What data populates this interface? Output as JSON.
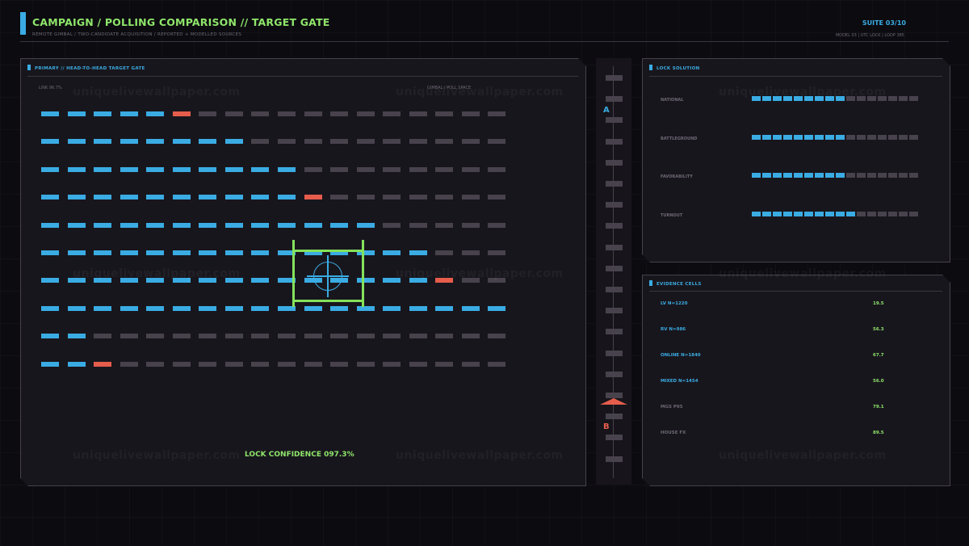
{
  "header": {
    "title": "CAMPAIGN / POLLING COMPARISON  //  TARGET GATE",
    "subtitle": "REMOTE GIMBAL / TWO-CANDIDATE ACQUISITION / REPORTED + MODELLED SOURCES",
    "suite": "SUITE 03/10",
    "meta": "MODEL 03  |  UTC LOCK  |  LOOP 385"
  },
  "primary": {
    "title": "PRIMARY // HEAD-TO-HEAD TARGET GATE",
    "link_label": "LINK 96.7%",
    "space_label": "GIMBAL / POLL SPACE",
    "confidence": "LOCK CONFIDENCE 097.3%",
    "grid_rows": [
      "bbbbbrgggggggggggg",
      "bbbbbbbbgggggggggg",
      "bbbbbbbbbbgggggggg",
      "bbbbbbbbbbrggggggg",
      "bbbbbbbbbbbbbggggg",
      "bbbbbbbbbbbbbbbggg",
      "bbbbbbbbbbbbbbbrgg",
      "bbbbbbbbbbbbbbbbbb",
      "bbgggggggggggggggg",
      "bbrggggggggggggggg"
    ]
  },
  "track": {
    "marker_a": "A",
    "marker_b": "B"
  },
  "lock_solution": {
    "title": "LOCK SOLUTION",
    "rows": [
      {
        "label": "NATIONAL",
        "filled": 9,
        "total": 16
      },
      {
        "label": "BATTLEGROUND",
        "filled": 9,
        "total": 16
      },
      {
        "label": "FAVORABILITY",
        "filled": 9,
        "total": 16
      },
      {
        "label": "TURNOUT",
        "filled": 10,
        "total": 16
      }
    ]
  },
  "evidence": {
    "title": "EVIDENCE CELLS",
    "rows": [
      {
        "label": "LV N=1220",
        "value": "19.5",
        "active": true
      },
      {
        "label": "RV N=986",
        "value": "56.3",
        "active": true
      },
      {
        "label": "ONLINE N=1840",
        "value": "67.7",
        "active": true
      },
      {
        "label": "MIXED N=1454",
        "value": "56.0",
        "active": true
      },
      {
        "label": "MGS P95",
        "value": "79.1",
        "active": false
      },
      {
        "label": "HOUSE FX",
        "value": "89.5",
        "active": false
      }
    ]
  },
  "watermark": "uniquelivewallpaper.com",
  "colors": {
    "accent_blue": "#3aace3",
    "accent_green": "#8fe66a",
    "accent_red": "#e65d4c",
    "inactive": "#48424c"
  }
}
